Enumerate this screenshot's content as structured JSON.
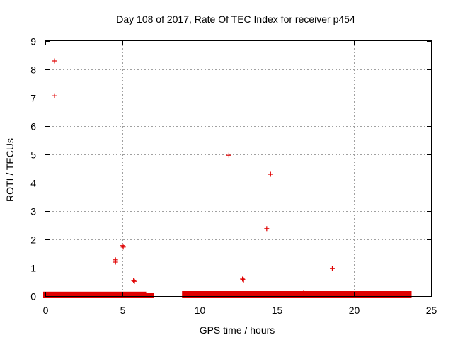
{
  "chart_data": {
    "type": "scatter",
    "title": "Day 108 of 2017, Rate Of TEC Index for receiver p454",
    "xlabel": "GPS time / hours",
    "ylabel": "ROTI / TECUs",
    "xlim": [
      0,
      25
    ],
    "ylim": [
      0,
      9
    ],
    "xticks": [
      0,
      5,
      10,
      15,
      20,
      25
    ],
    "yticks": [
      0,
      1,
      2,
      3,
      4,
      5,
      6,
      7,
      8,
      9
    ],
    "grid": true,
    "marker": "plus",
    "color": "#e00000",
    "dense_bands": [
      {
        "x_start": 0.0,
        "x_end": 6.4,
        "y_min": 0.0,
        "y_max": 0.08
      },
      {
        "x_start": 6.6,
        "x_end": 6.9,
        "y_min": 0.0,
        "y_max": 0.05
      },
      {
        "x_start": 9.0,
        "x_end": 23.6,
        "y_min": 0.0,
        "y_max": 0.1
      }
    ],
    "points": [
      {
        "x": 0.6,
        "y": 8.3
      },
      {
        "x": 0.6,
        "y": 7.07
      },
      {
        "x": 4.55,
        "y": 1.28
      },
      {
        "x": 4.55,
        "y": 1.2
      },
      {
        "x": 4.98,
        "y": 1.78
      },
      {
        "x": 5.05,
        "y": 1.73
      },
      {
        "x": 5.72,
        "y": 0.55
      },
      {
        "x": 5.78,
        "y": 0.52
      },
      {
        "x": 11.9,
        "y": 4.97
      },
      {
        "x": 12.78,
        "y": 0.6
      },
      {
        "x": 12.85,
        "y": 0.57
      },
      {
        "x": 14.35,
        "y": 2.38
      },
      {
        "x": 14.6,
        "y": 4.3
      },
      {
        "x": 16.75,
        "y": 0.13
      },
      {
        "x": 18.6,
        "y": 0.97
      }
    ]
  }
}
